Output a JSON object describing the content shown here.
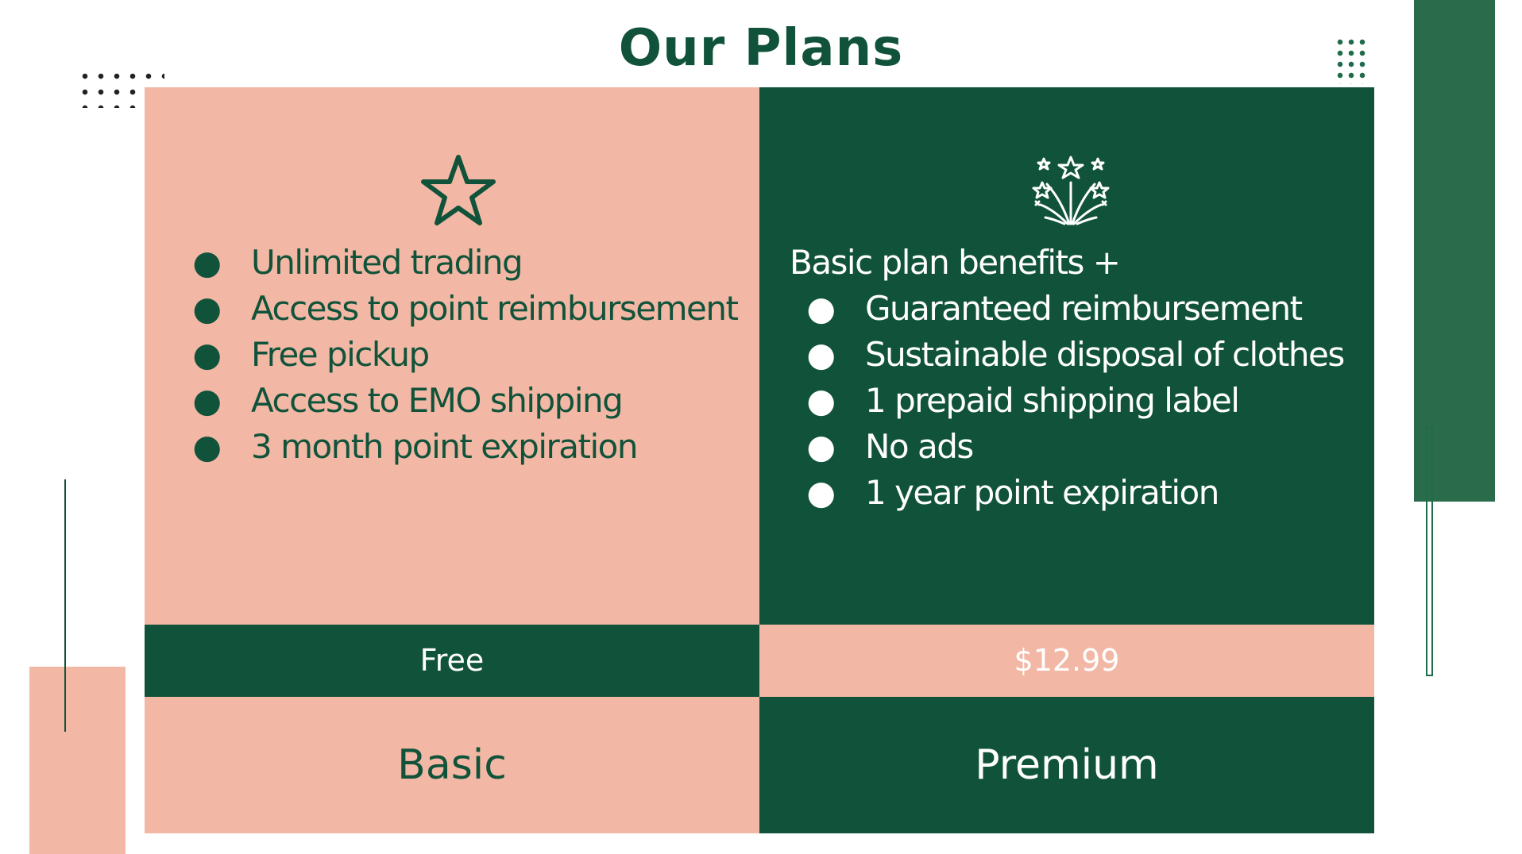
{
  "title": "Our Plans",
  "colors": {
    "dark_green": "#11533a",
    "pink": "#f2b8a5",
    "accent_green": "#2a6b4c",
    "white": "#ffffff"
  },
  "plans": [
    {
      "name": "Basic",
      "price": "Free",
      "icon": "star-icon",
      "features": [
        "Unlimited trading",
        "Access to point reimbursement",
        "Free pickup",
        "Access to EMO shipping",
        "3 month point expiration"
      ]
    },
    {
      "name": "Premium",
      "price": "$12.99",
      "icon": "fireworks-icon",
      "intro": "Basic plan benefits +",
      "features": [
        "Guaranteed reimbursement",
        "Sustainable disposal of clothes",
        "1 prepaid shipping label",
        "No ads",
        "1 year point expiration"
      ]
    }
  ],
  "bullet": "●"
}
